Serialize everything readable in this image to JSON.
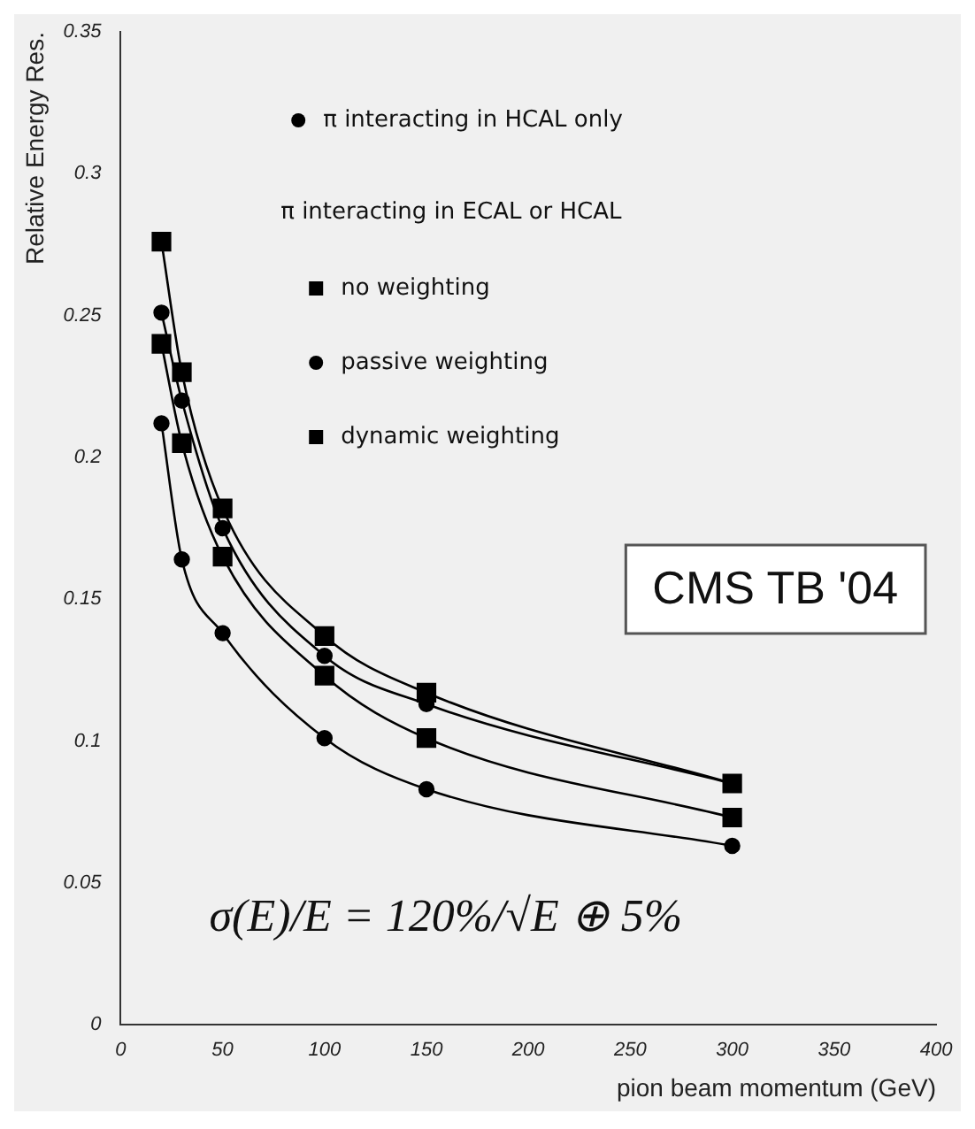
{
  "chart_data": {
    "type": "line",
    "xlabel": "pion beam momentum (GeV)",
    "ylabel": "Relative Energy Res.",
    "x": [
      20,
      30,
      50,
      100,
      150,
      300
    ],
    "series": [
      {
        "name": "π interacting in HCAL only",
        "color": "#000000",
        "marker": "circle",
        "values": [
          0.212,
          0.164,
          0.138,
          0.101,
          0.083,
          0.063
        ]
      },
      {
        "name": "no weighting",
        "color": "#000000",
        "marker": "square",
        "values": [
          0.276,
          0.23,
          0.182,
          0.137,
          0.117,
          0.085
        ]
      },
      {
        "name": "passive weighting",
        "color": "#000000",
        "marker": "circle",
        "values": [
          0.251,
          0.22,
          0.175,
          0.13,
          0.113,
          0.085
        ]
      },
      {
        "name": "dynamic weighting",
        "color": "#000000",
        "marker": "square",
        "values": [
          0.24,
          0.205,
          0.165,
          0.123,
          0.101,
          0.073
        ]
      }
    ],
    "xlim": [
      0,
      400
    ],
    "xticks": [
      0,
      50,
      100,
      150,
      200,
      250,
      300,
      350,
      400
    ],
    "ylim": [
      0,
      0.35
    ],
    "yticks": [
      0,
      0.05,
      0.1,
      0.15,
      0.2,
      0.25,
      0.3,
      0.35
    ],
    "grid": false,
    "legend": "top",
    "annotations": [
      "π interacting in ECAL or HCAL",
      "CMS TB '04",
      "σ(E)/E = 120%/√E ⊕ 5%"
    ]
  }
}
